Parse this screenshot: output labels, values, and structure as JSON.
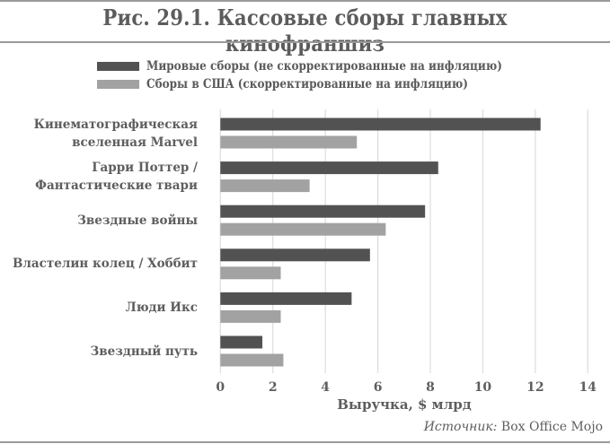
{
  "figure": {
    "title": "Рис. 29.1. Кассовые сборы главных кинофраншиз",
    "source_prefix": "Источник:",
    "source_name": "Box Office Mojo"
  },
  "legend": [
    {
      "label": "Мировые сборы (не скорректированные на инфляцию)",
      "color": "#525252"
    },
    {
      "label": "Сборы в США (скорректированные на инфляцию)",
      "color": "#a2a2a2"
    }
  ],
  "chart_data": {
    "type": "bar",
    "orientation": "horizontal",
    "title": "Рис. 29.1. Кассовые сборы главных кинофраншиз",
    "xlabel": "Выручка, $ млрд",
    "ylabel": "",
    "xlim": [
      0,
      14
    ],
    "xticks": [
      0,
      2,
      4,
      6,
      8,
      10,
      12,
      14
    ],
    "grid": true,
    "legend_position": "top",
    "categories": [
      "Кинематографическая вселенная Marvel",
      "Гарри Поттер / Фантастические твари",
      "Звездные войны",
      "Властелин колец / Хоббит",
      "Люди Икс",
      "Звездный путь"
    ],
    "series": [
      {
        "name": "Мировые сборы (не скорректированные на инфляцию)",
        "color": "#525252",
        "values": [
          12.2,
          8.3,
          7.8,
          5.7,
          5.0,
          1.6
        ]
      },
      {
        "name": "Сборы в США (скорректированные на инфляцию)",
        "color": "#a2a2a2",
        "values": [
          5.2,
          3.4,
          6.3,
          2.3,
          2.3,
          2.4
        ]
      }
    ],
    "source": "Источник: Box Office Mojo"
  },
  "categories_display": [
    [
      "Кинематографическая",
      "вселенная Marvel"
    ],
    [
      "Гарри Поттер /",
      "Фантастические твари"
    ],
    [
      "Звездные войны"
    ],
    [
      "Властелин колец / Хоббит"
    ],
    [
      "Люди Икс"
    ],
    [
      "Звездный путь"
    ]
  ]
}
